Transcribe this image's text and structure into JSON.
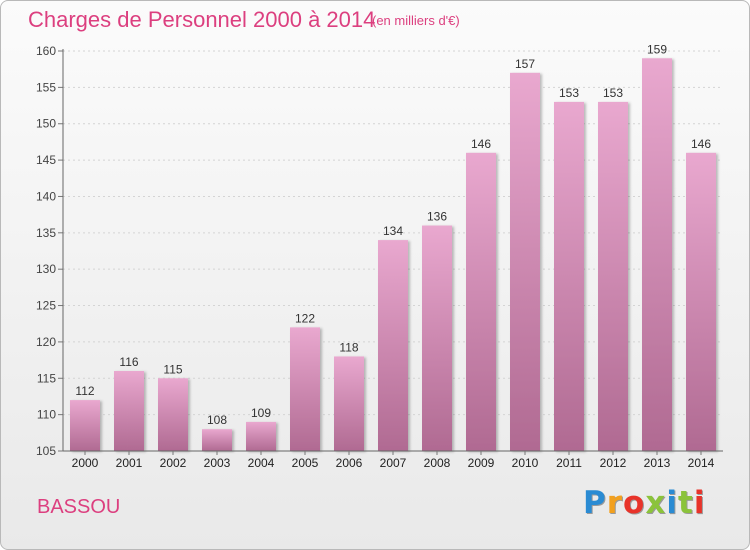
{
  "title": "Charges de Personnel 2000 à 2014",
  "subtitle": "(en milliers d'€)",
  "commune": "BASSOU",
  "logo": {
    "letters": [
      "P",
      "r",
      "o",
      "x",
      "i",
      "t",
      "i"
    ]
  },
  "colors": {
    "accent": "#dc3f7f",
    "bar_top": "#e9a8cf",
    "bar_bottom": "#b06a92"
  },
  "chart_data": {
    "type": "bar",
    "categories": [
      "2000",
      "2001",
      "2002",
      "2003",
      "2004",
      "2005",
      "2006",
      "2007",
      "2008",
      "2009",
      "2010",
      "2011",
      "2012",
      "2013",
      "2014"
    ],
    "values": [
      112,
      116,
      115,
      108,
      109,
      122,
      118,
      134,
      136,
      146,
      157,
      153,
      153,
      159,
      146
    ],
    "data_labels": [
      "112",
      "116",
      "115",
      "108",
      "109",
      "122",
      "118",
      "134",
      "136",
      "146",
      "157",
      "153",
      "153",
      "159",
      "146"
    ],
    "ylim": [
      105,
      160
    ],
    "yticks": [
      105,
      110,
      115,
      120,
      125,
      130,
      135,
      140,
      145,
      150,
      155,
      160
    ],
    "grid": true,
    "xlabel": "",
    "ylabel": ""
  }
}
